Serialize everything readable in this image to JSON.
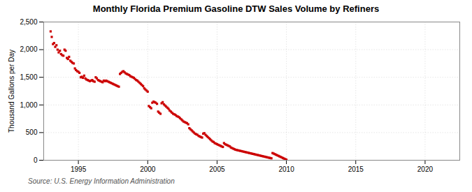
{
  "chart_data": {
    "type": "scatter",
    "title": "Monthly Florida Premium Gasoline DTW Sales Volume by Refiners",
    "ylabel": "Thousand Gallons per Day",
    "source": "Source: U.S. Energy Information Administration",
    "color": "#cc0000",
    "marker": "square",
    "grid": true,
    "xlim": [
      1992.5,
      2022.5
    ],
    "xticks": [
      1995,
      2000,
      2005,
      2010,
      2015,
      2020
    ],
    "ylim": [
      0,
      2500
    ],
    "yticks": [
      0,
      500,
      {
        "value": 1000,
        "label": "1,000"
      },
      {
        "value": 1500,
        "label": "1,500"
      },
      {
        "value": 2000,
        "label": "2,000"
      },
      {
        "value": 2500,
        "label": "2,500"
      }
    ],
    "x": [
      1993.0,
      1993.08,
      1993.17,
      1993.25,
      1993.33,
      1993.42,
      1993.5,
      1993.58,
      1993.67,
      1993.75,
      1993.83,
      1993.92,
      1994.0,
      1994.08,
      1994.17,
      1994.25,
      1994.33,
      1994.42,
      1994.5,
      1994.58,
      1994.67,
      1994.75,
      1994.83,
      1994.92,
      1995.0,
      1995.08,
      1995.17,
      1995.25,
      1995.33,
      1995.42,
      1995.5,
      1995.58,
      1995.67,
      1995.75,
      1995.83,
      1995.92,
      1996.0,
      1996.08,
      1996.17,
      1996.25,
      1996.33,
      1996.42,
      1996.5,
      1996.58,
      1996.67,
      1996.75,
      1996.83,
      1996.92,
      1997.0,
      1997.08,
      1997.17,
      1997.25,
      1997.33,
      1997.42,
      1997.5,
      1997.58,
      1997.67,
      1997.75,
      1997.83,
      1997.92,
      1998.0,
      1998.08,
      1998.17,
      1998.25,
      1998.33,
      1998.42,
      1998.5,
      1998.58,
      1998.67,
      1998.75,
      1998.83,
      1998.92,
      1999.0,
      1999.08,
      1999.17,
      1999.25,
      1999.33,
      1999.42,
      1999.5,
      1999.58,
      1999.67,
      1999.75,
      1999.83,
      1999.92,
      2000.0,
      2000.08,
      2000.17,
      2000.25,
      2000.33,
      2000.42,
      2000.5,
      2000.58,
      2000.67,
      2000.75,
      2000.83,
      2000.92,
      2001.0,
      2001.08,
      2001.17,
      2001.25,
      2001.33,
      2001.42,
      2001.5,
      2001.58,
      2001.67,
      2001.75,
      2001.83,
      2001.92,
      2002.0,
      2002.08,
      2002.17,
      2002.25,
      2002.33,
      2002.42,
      2002.5,
      2002.58,
      2002.67,
      2002.75,
      2002.83,
      2002.92,
      2003.0,
      2003.08,
      2003.17,
      2003.25,
      2003.33,
      2003.42,
      2003.5,
      2003.58,
      2003.67,
      2003.75,
      2003.83,
      2003.92,
      2004.0,
      2004.08,
      2004.17,
      2004.25,
      2004.33,
      2004.42,
      2004.5,
      2004.58,
      2004.67,
      2004.75,
      2004.83,
      2004.92,
      2005.0,
      2005.08,
      2005.17,
      2005.25,
      2005.33,
      2005.42,
      2005.5,
      2005.58,
      2005.67,
      2005.75,
      2005.83,
      2005.92,
      2006.0,
      2006.08,
      2006.17,
      2006.25,
      2006.33,
      2006.42,
      2006.5,
      2006.58,
      2006.67,
      2006.75,
      2006.83,
      2006.92,
      2007.0,
      2007.08,
      2007.17,
      2007.25,
      2007.33,
      2007.42,
      2007.5,
      2007.58,
      2007.67,
      2007.75,
      2007.83,
      2007.92,
      2008.0,
      2008.08,
      2008.17,
      2008.25,
      2008.33,
      2008.42,
      2008.5,
      2008.58,
      2008.67,
      2008.75,
      2008.83,
      2008.92,
      2009.0,
      2009.08,
      2009.17,
      2009.25,
      2009.33,
      2009.42,
      2009.5,
      2009.58,
      2009.67,
      2009.75,
      2009.83,
      2009.92,
      2010.0
    ],
    "values": [
      2330,
      2230,
      2100,
      2120,
      2050,
      2080,
      2000,
      1950,
      1980,
      1920,
      1900,
      1890,
      2000,
      1980,
      1850,
      1830,
      1870,
      1800,
      1780,
      1760,
      1750,
      1660,
      1630,
      1610,
      1600,
      1580,
      1500,
      1510,
      1490,
      1530,
      1480,
      1460,
      1450,
      1440,
      1430,
      1440,
      1450,
      1430,
      1420,
      1500,
      1480,
      1450,
      1440,
      1430,
      1420,
      1410,
      1440,
      1430,
      1440,
      1430,
      1420,
      1410,
      1400,
      1390,
      1380,
      1370,
      1360,
      1350,
      1340,
      1330,
      1560,
      1580,
      1600,
      1610,
      1590,
      1570,
      1560,
      1550,
      1540,
      1520,
      1510,
      1500,
      1490,
      1470,
      1450,
      1440,
      1420,
      1400,
      1380,
      1360,
      1340,
      1300,
      1280,
      1260,
      1240,
      980,
      960,
      940,
      1040,
      1060,
      1050,
      1040,
      1020,
      880,
      860,
      840,
      1030,
      1050,
      1010,
      990,
      970,
      950,
      930,
      900,
      880,
      860,
      840,
      830,
      820,
      800,
      790,
      780,
      760,
      740,
      720,
      700,
      690,
      680,
      670,
      650,
      580,
      560,
      540,
      520,
      500,
      480,
      470,
      460,
      440,
      430,
      420,
      410,
      480,
      490,
      460,
      440,
      420,
      400,
      380,
      360,
      340,
      330,
      310,
      300,
      290,
      280,
      270,
      260,
      250,
      240,
      310,
      290,
      280,
      270,
      260,
      250,
      230,
      220,
      210,
      200,
      190,
      185,
      180,
      175,
      170,
      165,
      160,
      155,
      150,
      145,
      140,
      135,
      130,
      125,
      120,
      115,
      110,
      105,
      100,
      95,
      90,
      85,
      80,
      75,
      70,
      65,
      60,
      55,
      50,
      45,
      40,
      35,
      130,
      120,
      110,
      100,
      90,
      80,
      70,
      60,
      50,
      40,
      30,
      20,
      10
    ]
  }
}
